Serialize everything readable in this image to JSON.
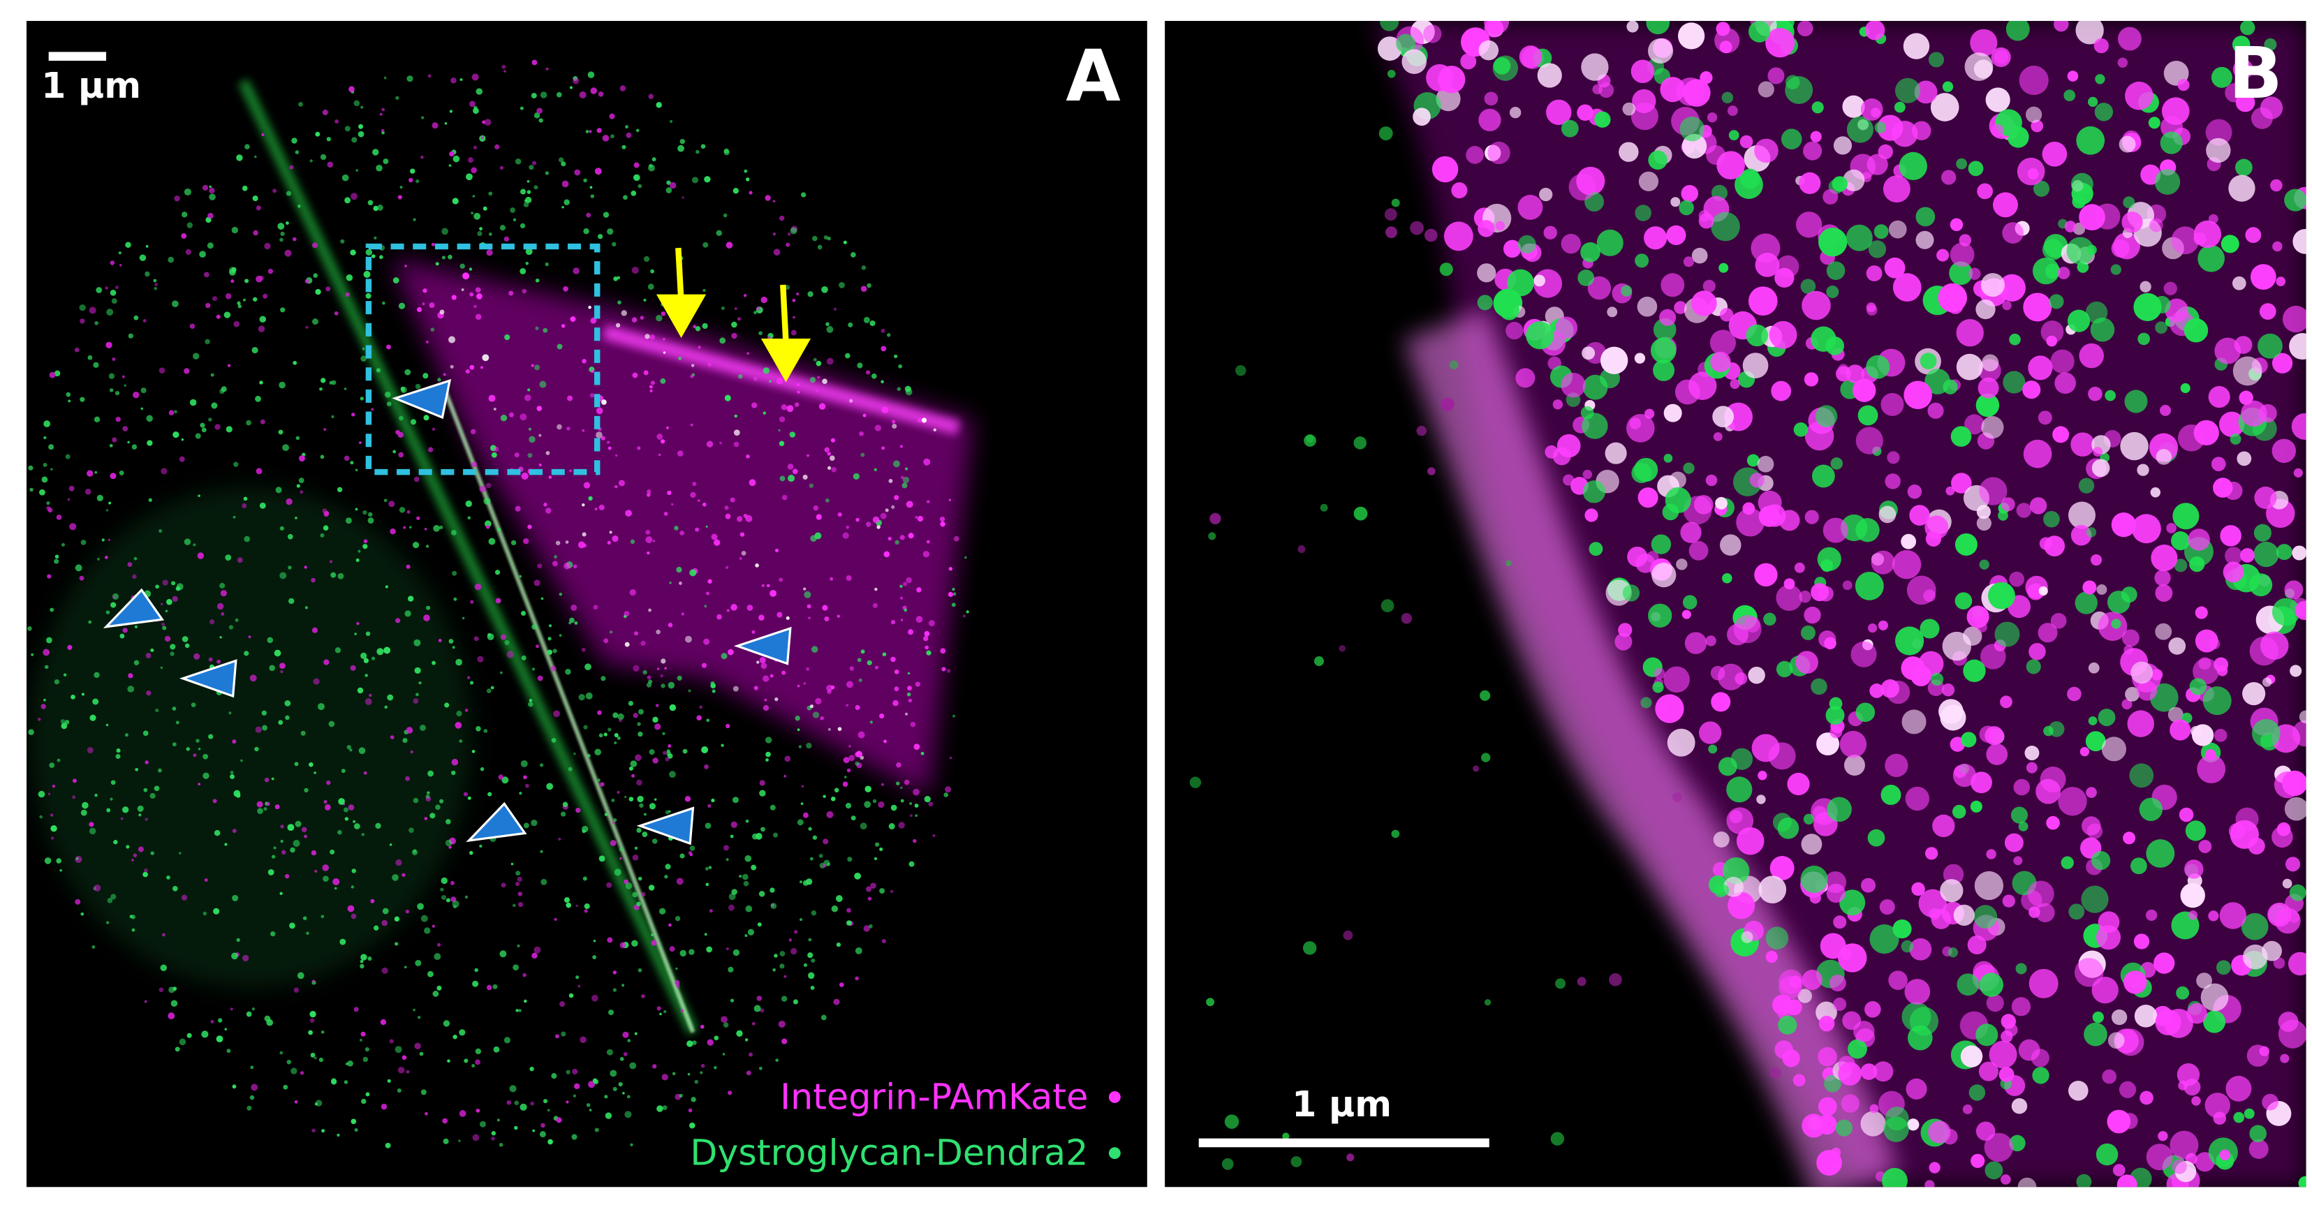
{
  "panels": [
    {
      "label": "A",
      "scale_bar": "1 µm",
      "legend": [
        "Integrin-PAmKate",
        "Dystroglycan-Dendra2"
      ]
    },
    {
      "label": "B",
      "scale_bar": "1 µm"
    }
  ]
}
